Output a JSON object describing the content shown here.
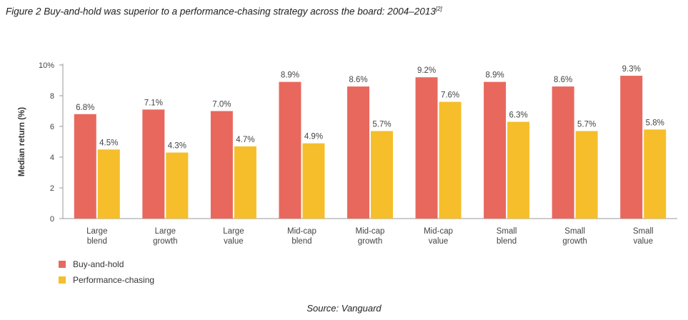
{
  "caption": {
    "text": "Figure 2 Buy-and-hold was superior to a performance-chasing strategy across the board: 2004–2013",
    "ref": "[2]"
  },
  "source": "Source: Vanguard",
  "colors": {
    "buy_and_hold": "#E8685E",
    "performance_chasing": "#F5BE2A"
  },
  "chart_data": {
    "type": "bar",
    "title": "",
    "xlabel": "",
    "ylabel": "Median return (%)",
    "ylim": [
      0,
      10
    ],
    "yticks": [
      0,
      2,
      4,
      6,
      8,
      10
    ],
    "ytick_labels": [
      "0",
      "2",
      "4",
      "6",
      "8",
      "10%"
    ],
    "categories": [
      [
        "Large",
        "blend"
      ],
      [
        "Large",
        "growth"
      ],
      [
        "Large",
        "value"
      ],
      [
        "Mid-cap",
        "blend"
      ],
      [
        "Mid-cap",
        "growth"
      ],
      [
        "Mid-cap",
        "value"
      ],
      [
        "Small",
        "blend"
      ],
      [
        "Small",
        "growth"
      ],
      [
        "Small",
        "value"
      ]
    ],
    "series": [
      {
        "name": "Buy-and-hold",
        "color": "#E8685E",
        "values": [
          6.8,
          7.1,
          7.0,
          8.9,
          8.6,
          9.2,
          8.9,
          8.6,
          9.3
        ],
        "labels": [
          "6.8%",
          "7.1%",
          "7.0%",
          "8.9%",
          "8.6%",
          "9.2%",
          "8.9%",
          "8.6%",
          "9.3%"
        ]
      },
      {
        "name": "Performance-chasing",
        "color": "#F5BE2A",
        "values": [
          4.5,
          4.3,
          4.7,
          4.9,
          5.7,
          7.6,
          6.3,
          5.7,
          5.8
        ],
        "labels": [
          "4.5%",
          "4.3%",
          "4.7%",
          "4.9%",
          "5.7%",
          "7.6%",
          "6.3%",
          "5.7%",
          "5.8%"
        ]
      }
    ],
    "legend_position": "bottom-left",
    "grid": false
  }
}
